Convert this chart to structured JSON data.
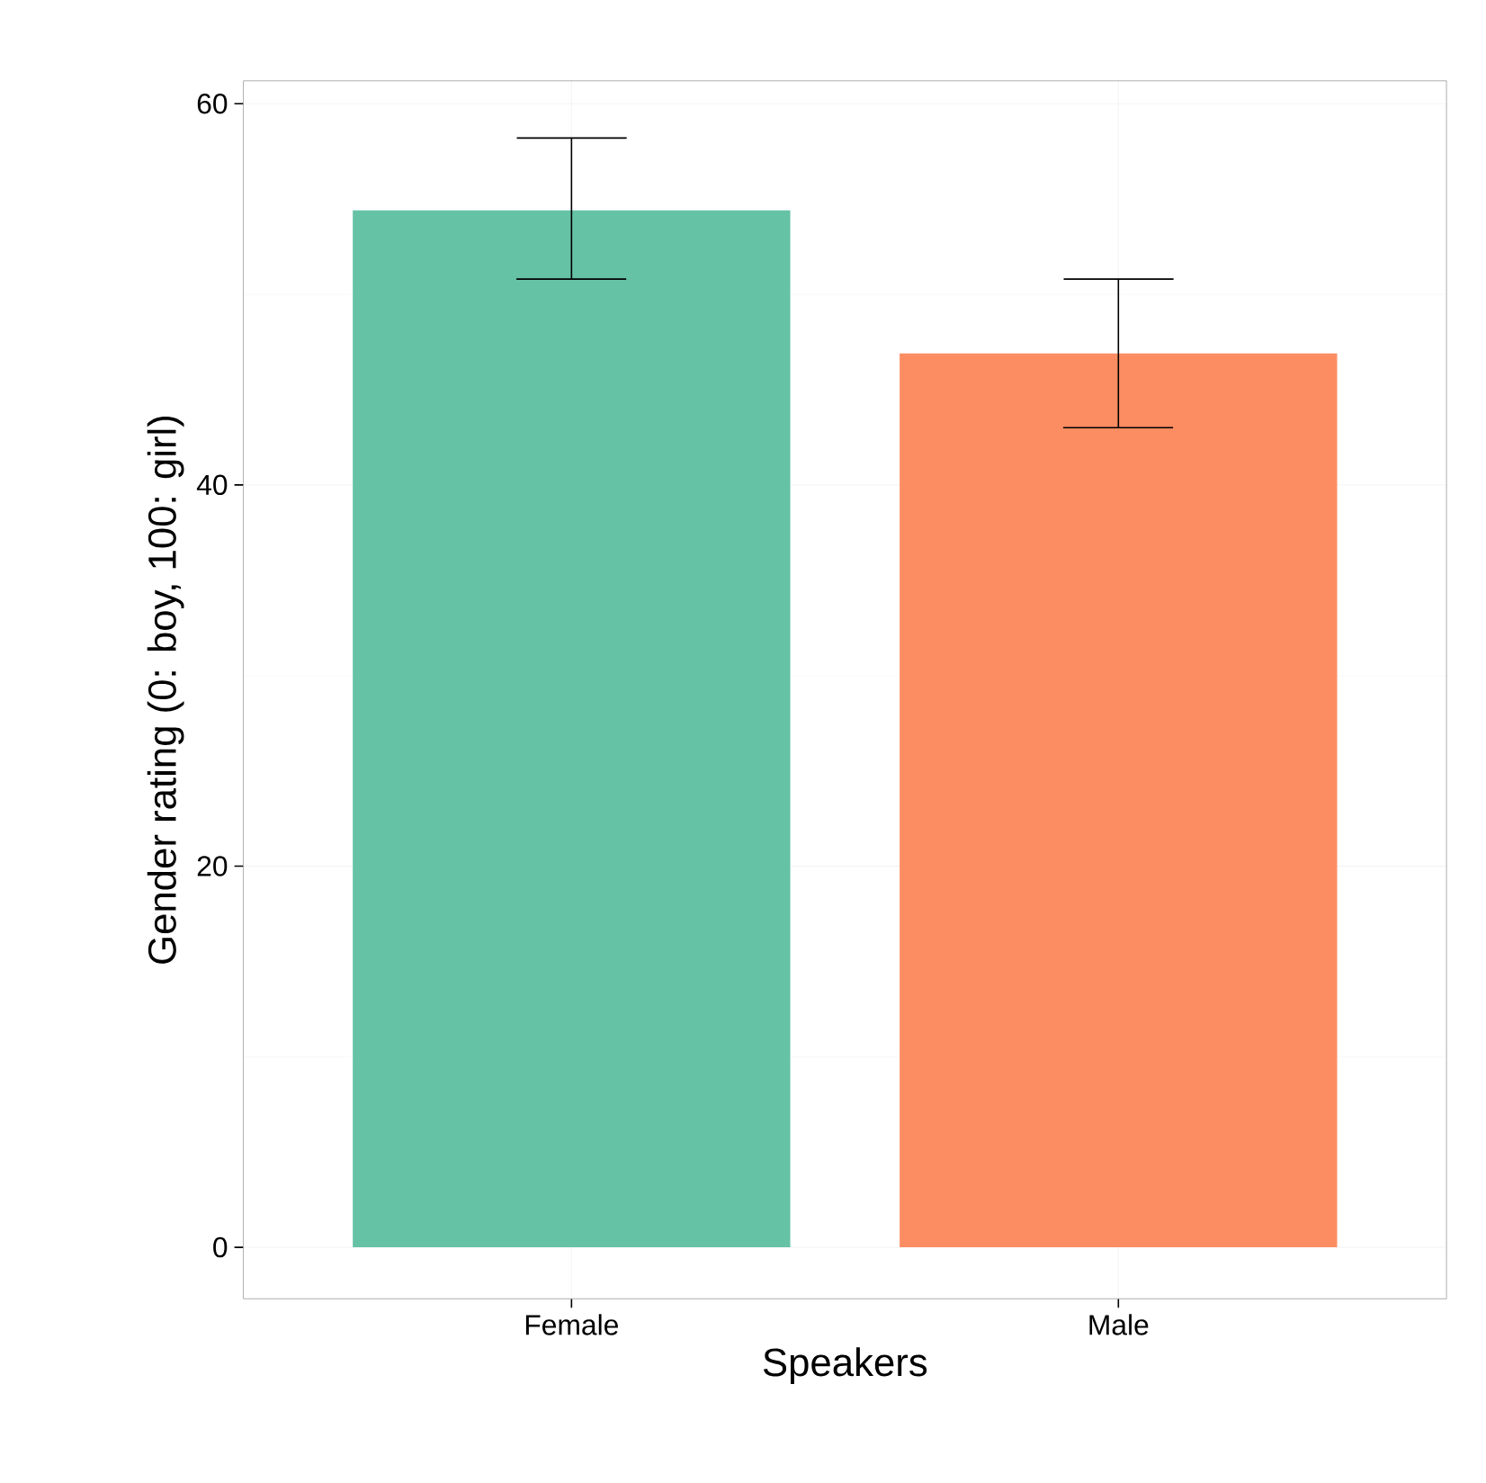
{
  "chart_data": {
    "type": "bar",
    "xlabel": "Speakers",
    "ylabel": "Gender rating (0: boy, 100: girl)",
    "categories": [
      "Female",
      "Male"
    ],
    "values": [
      54.4,
      46.9
    ],
    "colors": [
      "#66c2a5",
      "#fc8d62"
    ],
    "errors": [
      [
        50.8,
        58.2
      ],
      [
        43.0,
        50.8
      ]
    ],
    "ylim": [
      -2.7,
      61.2
    ],
    "yticks": [
      0,
      20,
      40,
      60
    ],
    "grid": true
  }
}
